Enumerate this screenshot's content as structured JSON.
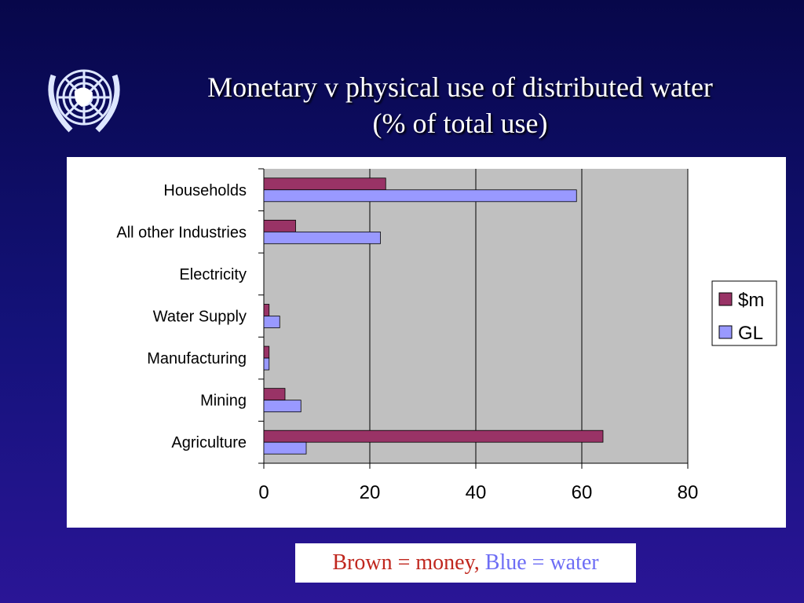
{
  "title_line1": "Monetary v physical use of distributed water",
  "title_line2": "(% of total use)",
  "caption": {
    "brown": "Brown = money,",
    "blue": "Blue = water"
  },
  "colors": {
    "money": "#993366",
    "water": "#9999ff",
    "plot_bg": "#c0c0c0"
  },
  "chart_data": {
    "type": "bar",
    "orientation": "horizontal",
    "categories": [
      "Households",
      "All other Industries",
      "Electricity",
      "Water Supply",
      "Manufacturing",
      "Mining",
      "Agriculture"
    ],
    "series": [
      {
        "name": "$m",
        "values": [
          23,
          6,
          0,
          1,
          1,
          4,
          64
        ]
      },
      {
        "name": "GL",
        "values": [
          59,
          22,
          0,
          3,
          1,
          7,
          8
        ]
      }
    ],
    "xlim": [
      0,
      80
    ],
    "xticks": [
      "0",
      "20",
      "40",
      "60",
      "80"
    ],
    "grid": true,
    "legend": "right"
  }
}
